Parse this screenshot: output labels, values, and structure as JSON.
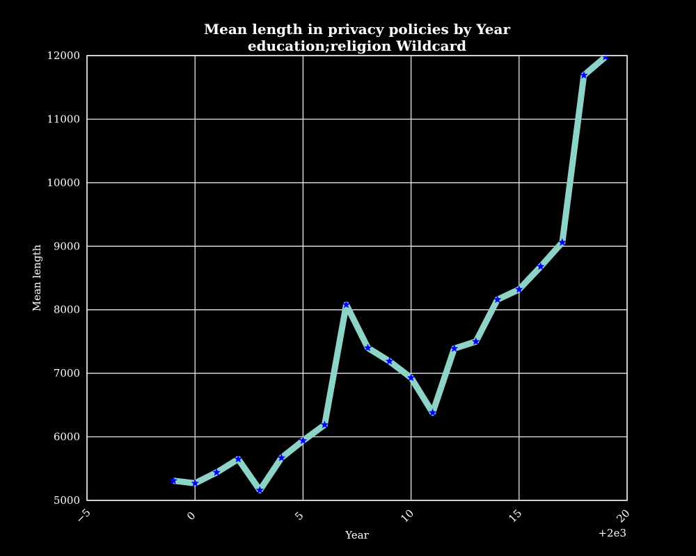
{
  "chart_data": {
    "type": "line",
    "title": "Mean length in privacy policies by Year",
    "subtitle": "education;religion Wildcard",
    "xlabel": "Year",
    "ylabel": "Mean length",
    "x_offset_label": "+2e3",
    "xlim": [
      -5,
      20
    ],
    "ylim": [
      5000,
      12000
    ],
    "xticks": [
      -5,
      0,
      5,
      10,
      15,
      20
    ],
    "xtick_labels": [
      "−5",
      "0",
      "5",
      "10",
      "15",
      "20"
    ],
    "yticks": [
      5000,
      6000,
      7000,
      8000,
      9000,
      10000,
      11000,
      12000
    ],
    "ytick_labels": [
      "5000",
      "6000",
      "7000",
      "8000",
      "9000",
      "10000",
      "11000",
      "12000"
    ],
    "grid": true,
    "line_color": "#8dd3c7",
    "marker_color": "#0000ff",
    "marker": "star",
    "background": "#000000",
    "series": [
      {
        "x": [
          -1,
          0,
          1,
          2,
          3,
          4,
          5,
          6,
          7,
          8,
          9,
          10,
          11,
          12,
          13,
          14,
          15,
          16,
          17,
          18,
          19
        ],
        "values": [
          5310,
          5270,
          5440,
          5650,
          5160,
          5670,
          5940,
          6190,
          8080,
          7400,
          7190,
          6930,
          6380,
          7390,
          7500,
          8160,
          8320,
          8680,
          9060,
          11690,
          11980
        ]
      }
    ]
  }
}
